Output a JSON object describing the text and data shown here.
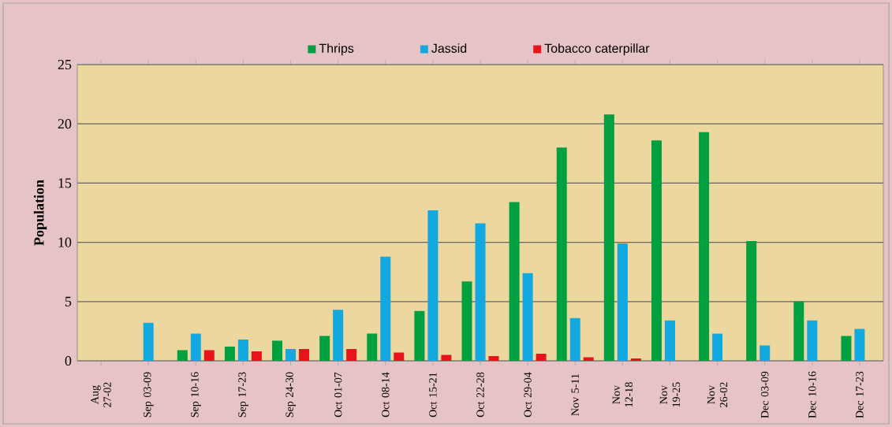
{
  "chart_data": {
    "type": "bar",
    "ylabel": "Population",
    "categories": [
      "Aug 27-02",
      "Sep 03-09",
      "Sep 10-16",
      "Sep 17-23",
      "Sep 24-30",
      "Oct 01-07",
      "Oct 08-14",
      "Oct 15-21",
      "Oct 22-28",
      "Oct 29-04",
      "Nov 5-11",
      "Nov 12-18",
      "Nov 19-25",
      "Nov 26-02",
      "Dec 03-09",
      "Dec 10-16",
      "Dec 17-23"
    ],
    "series": [
      {
        "name": "Thrips",
        "color": "#00a040",
        "values": [
          0,
          0,
          0.9,
          1.2,
          1.7,
          2.1,
          2.3,
          4.2,
          6.7,
          13.4,
          18.0,
          20.8,
          18.6,
          19.3,
          10.1,
          5.0,
          2.1
        ]
      },
      {
        "name": "Jassid",
        "color": "#12a8e0",
        "values": [
          0,
          3.2,
          2.3,
          1.8,
          1.0,
          4.3,
          8.8,
          12.7,
          11.6,
          7.4,
          3.6,
          9.9,
          3.4,
          2.3,
          1.3,
          3.4,
          2.7
        ]
      },
      {
        "name": "Tobacco caterpillar",
        "color": "#e8141c",
        "values": [
          0,
          0,
          0.9,
          0.8,
          1.0,
          1.0,
          0.7,
          0.5,
          0.4,
          0.6,
          0.3,
          0.2,
          0,
          0,
          0,
          0,
          0
        ]
      }
    ],
    "ylim": [
      0,
      25
    ],
    "yticks": [
      0,
      5,
      10,
      15,
      20,
      25
    ],
    "grid": "y",
    "legend": "top"
  }
}
